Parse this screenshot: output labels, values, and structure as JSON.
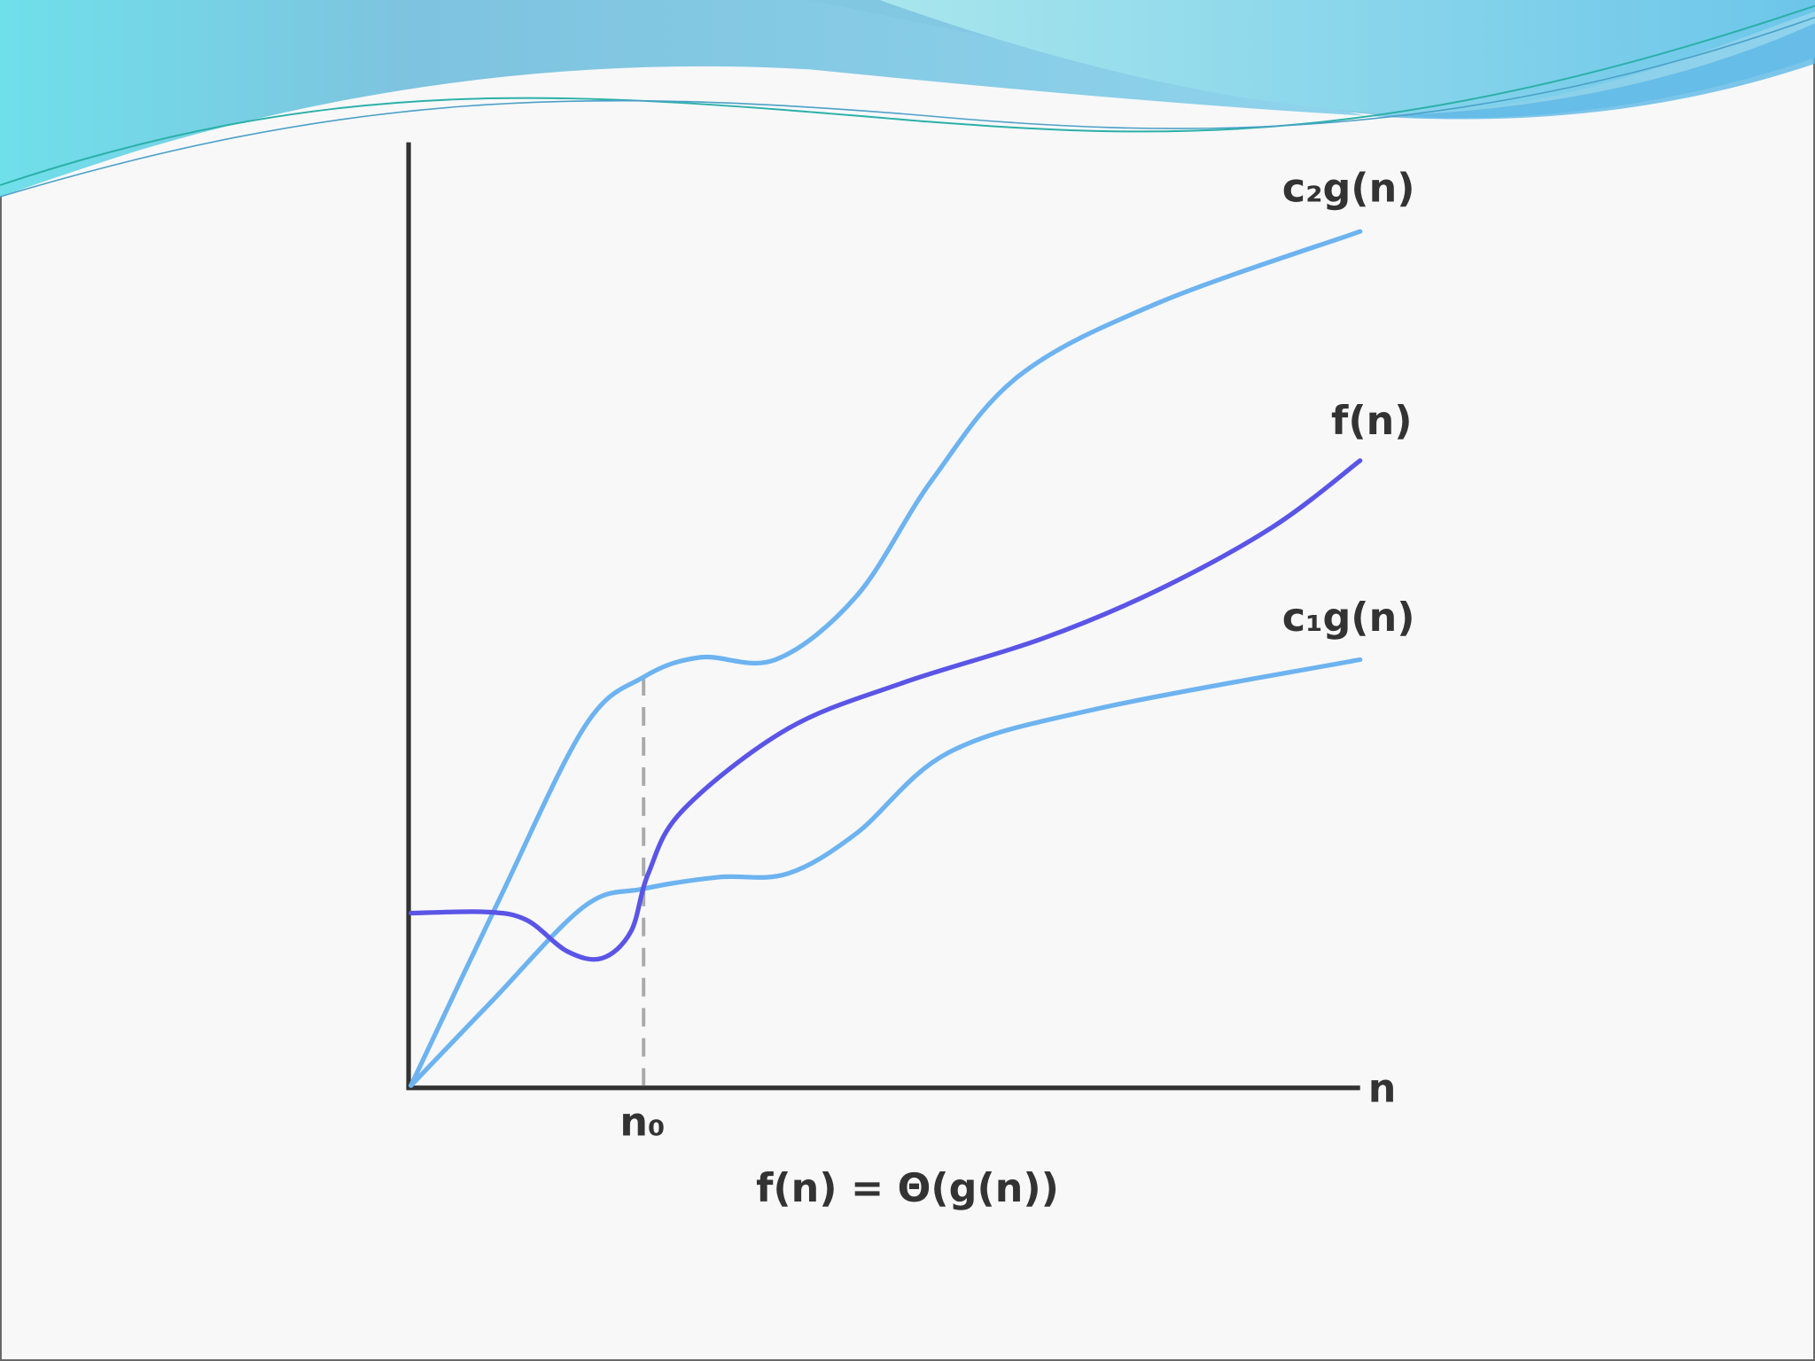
{
  "labels": {
    "upper": "c₂g(n)",
    "function": "f(n)",
    "lower": "c₁g(n)",
    "x_axis": "n",
    "threshold": "n₀"
  },
  "caption": "f(n) = Θ(g(n))"
}
